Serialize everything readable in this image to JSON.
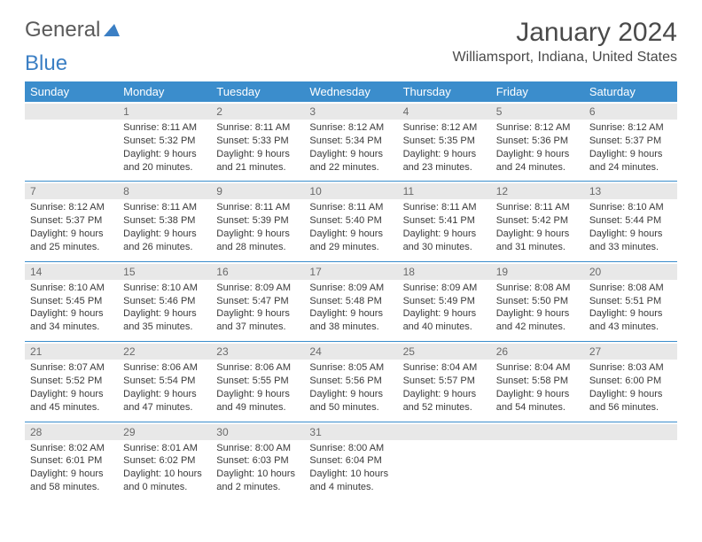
{
  "logo": {
    "text1": "General",
    "text2": "Blue",
    "icon_color": "#3b7fc4"
  },
  "title": "January 2024",
  "location": "Williamsport, Indiana, United States",
  "colors": {
    "header_bg": "#3b8dcc",
    "header_text": "#ffffff",
    "daynum_bg": "#e8e8e8",
    "border": "#3b8dcc"
  },
  "day_headers": [
    "Sunday",
    "Monday",
    "Tuesday",
    "Wednesday",
    "Thursday",
    "Friday",
    "Saturday"
  ],
  "weeks": [
    [
      {
        "empty": true
      },
      {
        "num": "1",
        "sunrise": "Sunrise: 8:11 AM",
        "sunset": "Sunset: 5:32 PM",
        "daylight1": "Daylight: 9 hours",
        "daylight2": "and 20 minutes."
      },
      {
        "num": "2",
        "sunrise": "Sunrise: 8:11 AM",
        "sunset": "Sunset: 5:33 PM",
        "daylight1": "Daylight: 9 hours",
        "daylight2": "and 21 minutes."
      },
      {
        "num": "3",
        "sunrise": "Sunrise: 8:12 AM",
        "sunset": "Sunset: 5:34 PM",
        "daylight1": "Daylight: 9 hours",
        "daylight2": "and 22 minutes."
      },
      {
        "num": "4",
        "sunrise": "Sunrise: 8:12 AM",
        "sunset": "Sunset: 5:35 PM",
        "daylight1": "Daylight: 9 hours",
        "daylight2": "and 23 minutes."
      },
      {
        "num": "5",
        "sunrise": "Sunrise: 8:12 AM",
        "sunset": "Sunset: 5:36 PM",
        "daylight1": "Daylight: 9 hours",
        "daylight2": "and 24 minutes."
      },
      {
        "num": "6",
        "sunrise": "Sunrise: 8:12 AM",
        "sunset": "Sunset: 5:37 PM",
        "daylight1": "Daylight: 9 hours",
        "daylight2": "and 24 minutes."
      }
    ],
    [
      {
        "num": "7",
        "sunrise": "Sunrise: 8:12 AM",
        "sunset": "Sunset: 5:37 PM",
        "daylight1": "Daylight: 9 hours",
        "daylight2": "and 25 minutes."
      },
      {
        "num": "8",
        "sunrise": "Sunrise: 8:11 AM",
        "sunset": "Sunset: 5:38 PM",
        "daylight1": "Daylight: 9 hours",
        "daylight2": "and 26 minutes."
      },
      {
        "num": "9",
        "sunrise": "Sunrise: 8:11 AM",
        "sunset": "Sunset: 5:39 PM",
        "daylight1": "Daylight: 9 hours",
        "daylight2": "and 28 minutes."
      },
      {
        "num": "10",
        "sunrise": "Sunrise: 8:11 AM",
        "sunset": "Sunset: 5:40 PM",
        "daylight1": "Daylight: 9 hours",
        "daylight2": "and 29 minutes."
      },
      {
        "num": "11",
        "sunrise": "Sunrise: 8:11 AM",
        "sunset": "Sunset: 5:41 PM",
        "daylight1": "Daylight: 9 hours",
        "daylight2": "and 30 minutes."
      },
      {
        "num": "12",
        "sunrise": "Sunrise: 8:11 AM",
        "sunset": "Sunset: 5:42 PM",
        "daylight1": "Daylight: 9 hours",
        "daylight2": "and 31 minutes."
      },
      {
        "num": "13",
        "sunrise": "Sunrise: 8:10 AM",
        "sunset": "Sunset: 5:44 PM",
        "daylight1": "Daylight: 9 hours",
        "daylight2": "and 33 minutes."
      }
    ],
    [
      {
        "num": "14",
        "sunrise": "Sunrise: 8:10 AM",
        "sunset": "Sunset: 5:45 PM",
        "daylight1": "Daylight: 9 hours",
        "daylight2": "and 34 minutes."
      },
      {
        "num": "15",
        "sunrise": "Sunrise: 8:10 AM",
        "sunset": "Sunset: 5:46 PM",
        "daylight1": "Daylight: 9 hours",
        "daylight2": "and 35 minutes."
      },
      {
        "num": "16",
        "sunrise": "Sunrise: 8:09 AM",
        "sunset": "Sunset: 5:47 PM",
        "daylight1": "Daylight: 9 hours",
        "daylight2": "and 37 minutes."
      },
      {
        "num": "17",
        "sunrise": "Sunrise: 8:09 AM",
        "sunset": "Sunset: 5:48 PM",
        "daylight1": "Daylight: 9 hours",
        "daylight2": "and 38 minutes."
      },
      {
        "num": "18",
        "sunrise": "Sunrise: 8:09 AM",
        "sunset": "Sunset: 5:49 PM",
        "daylight1": "Daylight: 9 hours",
        "daylight2": "and 40 minutes."
      },
      {
        "num": "19",
        "sunrise": "Sunrise: 8:08 AM",
        "sunset": "Sunset: 5:50 PM",
        "daylight1": "Daylight: 9 hours",
        "daylight2": "and 42 minutes."
      },
      {
        "num": "20",
        "sunrise": "Sunrise: 8:08 AM",
        "sunset": "Sunset: 5:51 PM",
        "daylight1": "Daylight: 9 hours",
        "daylight2": "and 43 minutes."
      }
    ],
    [
      {
        "num": "21",
        "sunrise": "Sunrise: 8:07 AM",
        "sunset": "Sunset: 5:52 PM",
        "daylight1": "Daylight: 9 hours",
        "daylight2": "and 45 minutes."
      },
      {
        "num": "22",
        "sunrise": "Sunrise: 8:06 AM",
        "sunset": "Sunset: 5:54 PM",
        "daylight1": "Daylight: 9 hours",
        "daylight2": "and 47 minutes."
      },
      {
        "num": "23",
        "sunrise": "Sunrise: 8:06 AM",
        "sunset": "Sunset: 5:55 PM",
        "daylight1": "Daylight: 9 hours",
        "daylight2": "and 49 minutes."
      },
      {
        "num": "24",
        "sunrise": "Sunrise: 8:05 AM",
        "sunset": "Sunset: 5:56 PM",
        "daylight1": "Daylight: 9 hours",
        "daylight2": "and 50 minutes."
      },
      {
        "num": "25",
        "sunrise": "Sunrise: 8:04 AM",
        "sunset": "Sunset: 5:57 PM",
        "daylight1": "Daylight: 9 hours",
        "daylight2": "and 52 minutes."
      },
      {
        "num": "26",
        "sunrise": "Sunrise: 8:04 AM",
        "sunset": "Sunset: 5:58 PM",
        "daylight1": "Daylight: 9 hours",
        "daylight2": "and 54 minutes."
      },
      {
        "num": "27",
        "sunrise": "Sunrise: 8:03 AM",
        "sunset": "Sunset: 6:00 PM",
        "daylight1": "Daylight: 9 hours",
        "daylight2": "and 56 minutes."
      }
    ],
    [
      {
        "num": "28",
        "sunrise": "Sunrise: 8:02 AM",
        "sunset": "Sunset: 6:01 PM",
        "daylight1": "Daylight: 9 hours",
        "daylight2": "and 58 minutes."
      },
      {
        "num": "29",
        "sunrise": "Sunrise: 8:01 AM",
        "sunset": "Sunset: 6:02 PM",
        "daylight1": "Daylight: 10 hours",
        "daylight2": "and 0 minutes."
      },
      {
        "num": "30",
        "sunrise": "Sunrise: 8:00 AM",
        "sunset": "Sunset: 6:03 PM",
        "daylight1": "Daylight: 10 hours",
        "daylight2": "and 2 minutes."
      },
      {
        "num": "31",
        "sunrise": "Sunrise: 8:00 AM",
        "sunset": "Sunset: 6:04 PM",
        "daylight1": "Daylight: 10 hours",
        "daylight2": "and 4 minutes."
      },
      {
        "empty": true
      },
      {
        "empty": true
      },
      {
        "empty": true
      }
    ]
  ]
}
